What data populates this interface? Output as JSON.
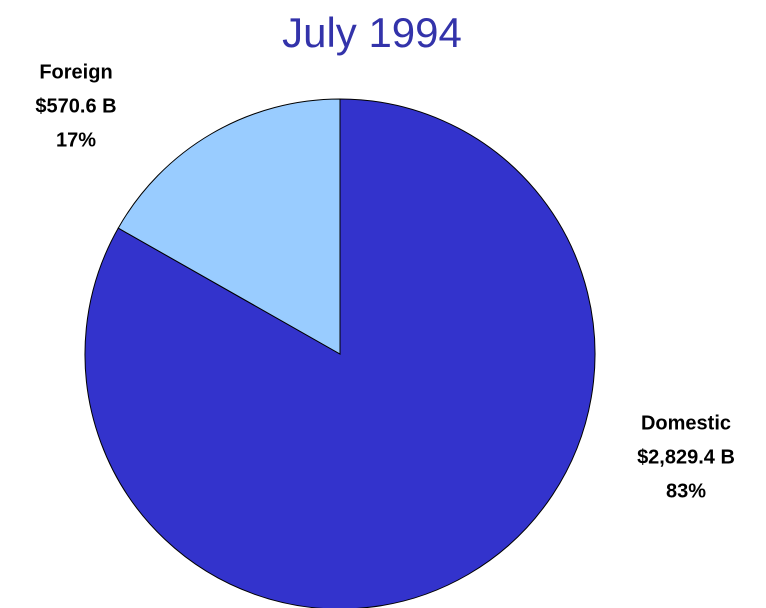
{
  "chart_data": {
    "type": "pie",
    "title": "July 1994",
    "categories": [
      "Domestic",
      "Foreign"
    ],
    "values": [
      2829.4,
      570.6
    ],
    "value_labels": [
      "$2,829.4 B",
      "$570.6 B"
    ],
    "percents": [
      83,
      17
    ],
    "percent_labels": [
      "83%",
      "17%"
    ],
    "colors": [
      "#3333cc",
      "#99ccff"
    ]
  }
}
